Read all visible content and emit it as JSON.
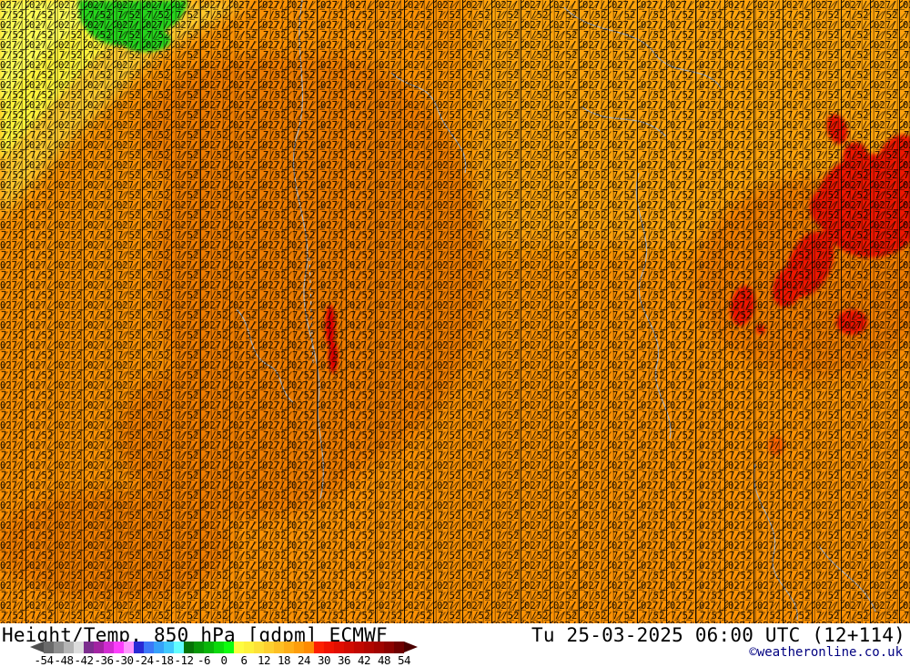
{
  "map": {
    "colors": {
      "base": "#fb9104",
      "light_orange": "#ffa60b",
      "deep_orange": "#ef7c00",
      "yellow_warm": "#fdca2e",
      "yellow": "#fdf23b",
      "yellow_bright": "#fdfb55",
      "green": "#27d41f",
      "red": "#ec1500",
      "red_streak": "#e00000",
      "orange_red": "#fa6400",
      "coast": "#b3b3b3",
      "texture": "#000000"
    },
    "texture_row1": "027/",
    "texture_row2": "7/52"
  },
  "footer": {
    "title": "Height/Temp. 850 hPa [gdpm] ECMWF",
    "datetime": "Tu 25-03-2025 06:00 UTC (12+114)",
    "copyright": "©weatheronline.co.uk"
  },
  "legend": {
    "tick_labels": [
      "-54",
      "-48",
      "-42",
      "-36",
      "-30",
      "-24",
      "-18",
      "-12",
      "-6",
      "0",
      "6",
      "12",
      "18",
      "24",
      "30",
      "36",
      "42",
      "48",
      "54"
    ],
    "segment_colors": [
      "#6a6a6a",
      "#8e8e8e",
      "#b4b4b4",
      "#dcdcdc",
      "#7c2e8e",
      "#a224a2",
      "#d12cd1",
      "#fb3efb",
      "#fc96fc",
      "#2929d4",
      "#3c78f8",
      "#36a1fa",
      "#3fc8fd",
      "#62fdfd",
      "#067306",
      "#089708",
      "#0ab50a",
      "#0cd90c",
      "#0efc0e",
      "#fdfc40",
      "#fdf13b",
      "#fde138",
      "#fdd02f",
      "#fdbf24",
      "#fdae18",
      "#fd9d0c",
      "#fd8b02",
      "#fd2000",
      "#f01300",
      "#e10e00",
      "#d10b00",
      "#c10800",
      "#b10600",
      "#a10400",
      "#8c0200",
      "#6f0000"
    ],
    "arrow_left_color": "#4f4f4f",
    "arrow_right_color": "#4a0000"
  }
}
